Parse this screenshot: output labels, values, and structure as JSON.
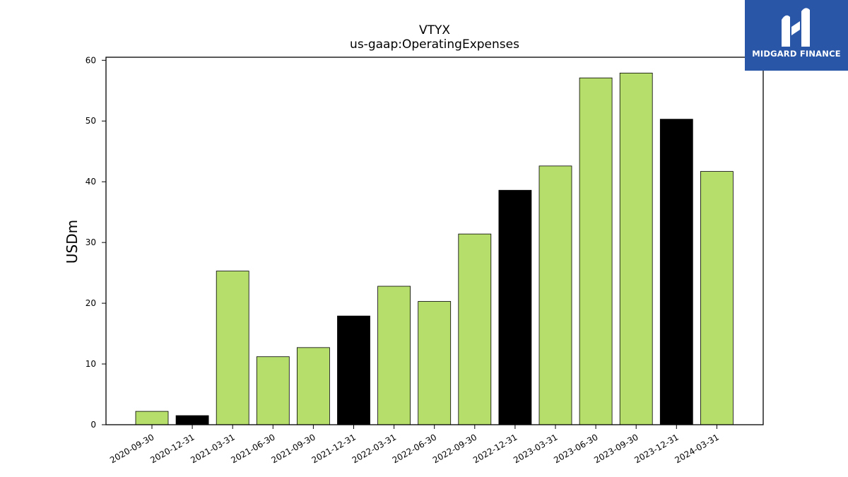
{
  "chart_data": {
    "type": "bar",
    "title": "VTYX",
    "subtitle": "us-gaap:OperatingExpenses",
    "xlabel": "",
    "ylabel": "USDm",
    "ylim": [
      0,
      60.5
    ],
    "yticks": [
      0,
      10,
      20,
      30,
      40,
      50,
      60
    ],
    "categories": [
      "2020-09-30",
      "2020-12-31",
      "2021-03-31",
      "2021-06-30",
      "2021-09-30",
      "2021-12-31",
      "2022-03-31",
      "2022-06-30",
      "2022-09-30",
      "2022-12-31",
      "2023-03-31",
      "2023-06-30",
      "2023-09-30",
      "2023-12-31",
      "2024-03-31"
    ],
    "values": [
      2.2,
      1.5,
      25.3,
      11.2,
      12.7,
      17.9,
      22.8,
      20.3,
      31.4,
      38.6,
      42.6,
      57.1,
      57.9,
      50.3,
      41.7
    ],
    "bar_colors": [
      "#b5de6b",
      "#000000",
      "#b5de6b",
      "#b5de6b",
      "#b5de6b",
      "#000000",
      "#b5de6b",
      "#b5de6b",
      "#b5de6b",
      "#000000",
      "#b5de6b",
      "#b5de6b",
      "#b5de6b",
      "#000000",
      "#b5de6b"
    ],
    "grid": false
  },
  "logo": {
    "text": "MIDGARD FINANCE",
    "icon": "midgard-logo-icon",
    "background": "#2a56a8"
  }
}
